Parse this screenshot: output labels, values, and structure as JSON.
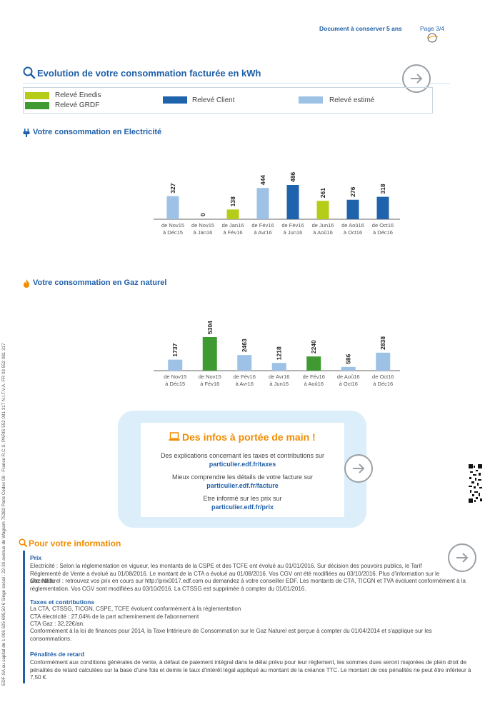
{
  "header": {
    "retention_note": "Document à conserver 5 ans",
    "page": "Page 3/4"
  },
  "side_text": "EDF-SA au capital de 1 006 625 695,50 € Siège social : 22-30 avenue de Wagram 75382 Paris Cedex 08 - France R.C.S. PARIS 552 081 317 N.I.T.V.A. FR 03 552 081 317",
  "consumption": {
    "title": "Evolution de votre consommation facturée en kWh",
    "legend": {
      "enedis": "Relevé Enedis",
      "grdf": "Relevé GRDF",
      "client": "Relevé Client",
      "estime": "Relevé estimé"
    },
    "colors": {
      "enedis": "#b5cc18",
      "grdf": "#3f9a32",
      "client": "#1f63ad",
      "estime": "#9dc2e6"
    }
  },
  "electricity": {
    "title": "Votre consommation en Electricité"
  },
  "gas": {
    "title": "Votre consommation en Gaz naturel"
  },
  "chart_data": [
    {
      "type": "bar",
      "title": "Votre consommation en Electricité",
      "categories": [
        [
          "de Nov15",
          "à Déc15"
        ],
        [
          "de Nov15",
          "à Jan16"
        ],
        [
          "de Jan16",
          "à Fév16"
        ],
        [
          "de Fév16",
          "à Avr16"
        ],
        [
          "de Fév16",
          "à Jun16"
        ],
        [
          "de Jun16",
          "à Aoû16"
        ],
        [
          "de Aoû16",
          "à Oct16"
        ],
        [
          "de Oct16",
          "à Déc16"
        ]
      ],
      "values": [
        327,
        0,
        138,
        444,
        486,
        261,
        276,
        318
      ],
      "reading_type": [
        "estime",
        "estime",
        "enedis",
        "estime",
        "client",
        "enedis",
        "client",
        "client"
      ],
      "ylim": [
        0,
        486
      ]
    },
    {
      "type": "bar",
      "title": "Votre consommation en Gaz naturel",
      "categories": [
        [
          "de Nov15",
          "à Déc15"
        ],
        [
          "de Nov15",
          "à Fév16"
        ],
        [
          "de Fév16",
          "à Avr16"
        ],
        [
          "de Avr16",
          "à Jun16"
        ],
        [
          "de Fév16",
          "à Aoû16"
        ],
        [
          "de Aoû16",
          "à Oct16"
        ],
        [
          "de Oct16",
          "à Déc16"
        ]
      ],
      "values": [
        1737,
        5304,
        2463,
        1218,
        2240,
        586,
        2838
      ],
      "reading_type": [
        "estime",
        "grdf",
        "estime",
        "estime",
        "grdf",
        "estime",
        "estime"
      ],
      "ylim": [
        0,
        5304
      ]
    }
  ],
  "infos": {
    "title": "Des infos à portée de main !",
    "line1": "Des explications concernant les taxes et contributions sur",
    "link1": "particulier.edf.fr/taxes",
    "line2": "Mieux comprendre les détails de votre facture sur",
    "link2": "particulier.edf.fr/facture",
    "line3": "Etre informé sur les prix sur",
    "link3": "particulier.edf.fr/prix"
  },
  "information": {
    "title": "Pour votre information",
    "prix": {
      "heading": "Prix",
      "p1": "Electricité : Selon la réglementation en vigueur, les montants de la CSPE et des TCFE ont évolué au 01/01/2016. Sur décision des pouvoirs publics, le Tarif Réglementé de Vente a évolué au 01/08/2016. Le montant de la CTA a évolué au 01/08/2016. Vos CGV ont été modifiées au 03/10/2016. Plus d'information sur le site edf.fr.",
      "p2": "Gaz Naturel : retrouvez vos prix en cours sur http://prix0017.edf.com ou demandez à votre conseiller EDF. Les montants de CTA, TICGN et TVA évoluent conformément à la réglementation. Vos CGV sont modifiées au 03/10/2016. La CTSSG est supprimée à compter du 01/01/2016."
    },
    "taxes": {
      "heading": "Taxes et contributions",
      "l1": "La CTA, CTSSG, TICGN, CSPE, TCFE évoluent conformément à la réglementation",
      "l2": "CTA électricité : 27,04% de la part acheminement de l'abonnement",
      "l3": "CTA Gaz : 32,22€/an.",
      "l4": "Conformément à la loi de finances pour 2014, la Taxe Intérieure de Consommation sur le Gaz Naturel est perçue à compter du 01/04/2014 et s'applique sur les consommations."
    },
    "penalites": {
      "heading": "Pénalités de retard",
      "p1": "Conformément aux conditions générales de vente, à défaut de paiement intégral dans le délai prévu pour leur règlement, les sommes dues seront majorées de plein droit de pénalités de retard calculées sur la base d'une fois et demie le taux d'intérêt légal appliqué au montant de la créance TTC. Le montant de ces pénalités ne peut être inférieur à 7,50 €."
    }
  }
}
